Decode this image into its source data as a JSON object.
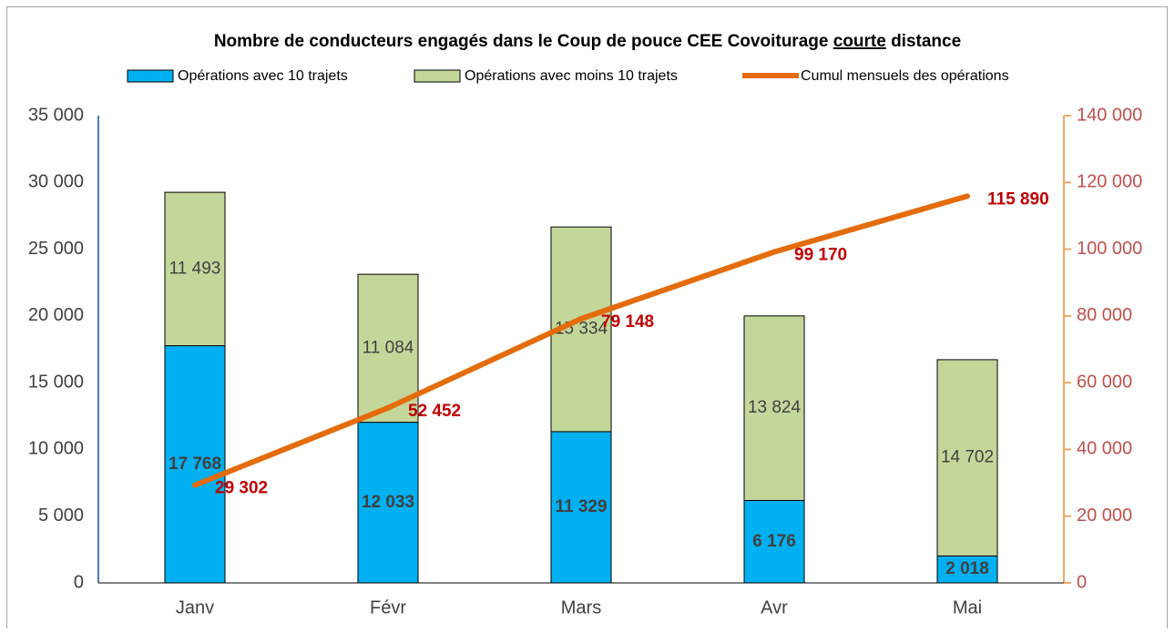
{
  "chart_data": {
    "type": "bar",
    "stacked": true,
    "title": [
      {
        "text": "Nombre de conducteurs engagés dans le Coup de pouce CEE Covoiturage "
      },
      {
        "text": "courte",
        "underline": true
      },
      {
        "text": " distance"
      }
    ],
    "categories": [
      "Janv",
      "Févr",
      "Mars",
      "Avr",
      "Mai"
    ],
    "series": [
      {
        "name": "Opérations avec 10 trajets",
        "type": "bar",
        "color": "#00b0f0",
        "values": [
          17768,
          12033,
          11329,
          6176,
          2018
        ],
        "value_labels": [
          "17 768",
          "12 033",
          "11 329",
          "6 176",
          "2 018"
        ],
        "label_bold": true
      },
      {
        "name": "Opérations avec moins 10 trajets",
        "type": "bar",
        "color": "#c4d79b",
        "values": [
          11493,
          11084,
          15334,
          13824,
          14702
        ],
        "value_labels": [
          "11 493",
          "11 084",
          "15 334",
          "13 824",
          "14 702"
        ],
        "label_bold": false
      },
      {
        "name": "Cumul mensuels des opérations",
        "type": "line",
        "color": "#e46c0a",
        "axis": "y2",
        "values": [
          29302,
          52452,
          79148,
          99170,
          115890
        ],
        "value_labels": [
          "29 302",
          "52 452",
          "79 148",
          "99 170",
          "115 890"
        ],
        "label_color": "#c00000"
      }
    ],
    "ylim": [
      0,
      35000
    ],
    "yticks": [
      {
        "value": 0,
        "label": "0"
      },
      {
        "value": 5000,
        "label": "5 000"
      },
      {
        "value": 10000,
        "label": "10 000"
      },
      {
        "value": 15000,
        "label": "15 000"
      },
      {
        "value": 20000,
        "label": "20 000"
      },
      {
        "value": 25000,
        "label": "25 000"
      },
      {
        "value": 30000,
        "label": "30 000"
      },
      {
        "value": 35000,
        "label": "35 000"
      }
    ],
    "y2lim": [
      0,
      140000
    ],
    "y2ticks": [
      {
        "value": 0,
        "label": "0"
      },
      {
        "value": 20000,
        "label": "20 000"
      },
      {
        "value": 40000,
        "label": "40 000"
      },
      {
        "value": 60000,
        "label": "60 000"
      },
      {
        "value": 80000,
        "label": "80 000"
      },
      {
        "value": 100000,
        "label": "100 000"
      },
      {
        "value": 120000,
        "label": "120 000"
      },
      {
        "value": 140000,
        "label": "140 000"
      }
    ],
    "y2_color": "#c0504d",
    "legend": "top",
    "grid": false
  }
}
